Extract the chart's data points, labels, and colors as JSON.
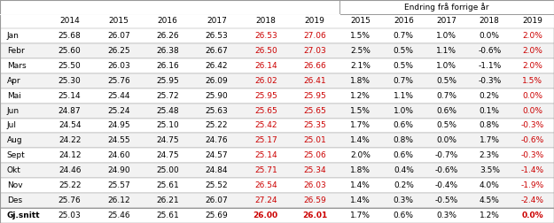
{
  "title": "Endring frå forrige år",
  "col_headers": [
    "2014",
    "2015",
    "2016",
    "2017",
    "2018",
    "2019",
    "2015",
    "2016",
    "2017",
    "2018",
    "2019"
  ],
  "row_headers": [
    "Jan",
    "Febr",
    "Mars",
    "Apr",
    "Mai",
    "Jun",
    "Jul",
    "Aug",
    "Sept",
    "Okt",
    "Nov",
    "Des",
    "Gj.snitt"
  ],
  "main_data": [
    [
      "25.68",
      "26.07",
      "26.26",
      "26.53",
      "26.53",
      "27.06"
    ],
    [
      "25.60",
      "26.25",
      "26.38",
      "26.67",
      "26.50",
      "27.03"
    ],
    [
      "25.50",
      "26.03",
      "26.16",
      "26.42",
      "26.14",
      "26.66"
    ],
    [
      "25.30",
      "25.76",
      "25.95",
      "26.09",
      "26.02",
      "26.41"
    ],
    [
      "25.14",
      "25.44",
      "25.72",
      "25.90",
      "25.95",
      "25.95"
    ],
    [
      "24.87",
      "25.24",
      "25.48",
      "25.63",
      "25.65",
      "25.65"
    ],
    [
      "24.54",
      "24.95",
      "25.10",
      "25.22",
      "25.42",
      "25.35"
    ],
    [
      "24.22",
      "24.55",
      "24.75",
      "24.76",
      "25.17",
      "25.01"
    ],
    [
      "24.12",
      "24.60",
      "24.75",
      "24.57",
      "25.14",
      "25.06"
    ],
    [
      "24.46",
      "24.90",
      "25.00",
      "24.84",
      "25.71",
      "25.34"
    ],
    [
      "25.22",
      "25.57",
      "25.61",
      "25.52",
      "26.54",
      "26.03"
    ],
    [
      "25.76",
      "26.12",
      "26.21",
      "26.07",
      "27.24",
      "26.59"
    ],
    [
      "25.03",
      "25.46",
      "25.61",
      "25.69",
      "26.00",
      "26.01"
    ]
  ],
  "change_data": [
    [
      "1.5%",
      "0.7%",
      "1.0%",
      "0.0%",
      "2.0%"
    ],
    [
      "2.5%",
      "0.5%",
      "1.1%",
      "-0.6%",
      "2.0%"
    ],
    [
      "2.1%",
      "0.5%",
      "1.0%",
      "-1.1%",
      "2.0%"
    ],
    [
      "1.8%",
      "0.7%",
      "0.5%",
      "-0.3%",
      "1.5%"
    ],
    [
      "1.2%",
      "1.1%",
      "0.7%",
      "0.2%",
      "0.0%"
    ],
    [
      "1.5%",
      "1.0%",
      "0.6%",
      "0.1%",
      "0.0%"
    ],
    [
      "1.7%",
      "0.6%",
      "0.5%",
      "0.8%",
      "-0.3%"
    ],
    [
      "1.4%",
      "0.8%",
      "0.0%",
      "1.7%",
      "-0.6%"
    ],
    [
      "2.0%",
      "0.6%",
      "-0.7%",
      "2.3%",
      "-0.3%"
    ],
    [
      "1.8%",
      "0.4%",
      "-0.6%",
      "3.5%",
      "-1.4%"
    ],
    [
      "1.4%",
      "0.2%",
      "-0.4%",
      "4.0%",
      "-1.9%"
    ],
    [
      "1.4%",
      "0.3%",
      "-0.5%",
      "4.5%",
      "-2.4%"
    ],
    [
      "1.7%",
      "0.6%",
      "0.3%",
      "1.2%",
      "0.0%"
    ]
  ],
  "red_main_cols": [
    4,
    5
  ],
  "red_change_cols": [
    4
  ],
  "bg_color": "#ffffff",
  "text_color": "#000000",
  "red_color": "#cc0000",
  "border_color": "#999999",
  "fontsize": 6.5,
  "header_fontsize": 6.5
}
